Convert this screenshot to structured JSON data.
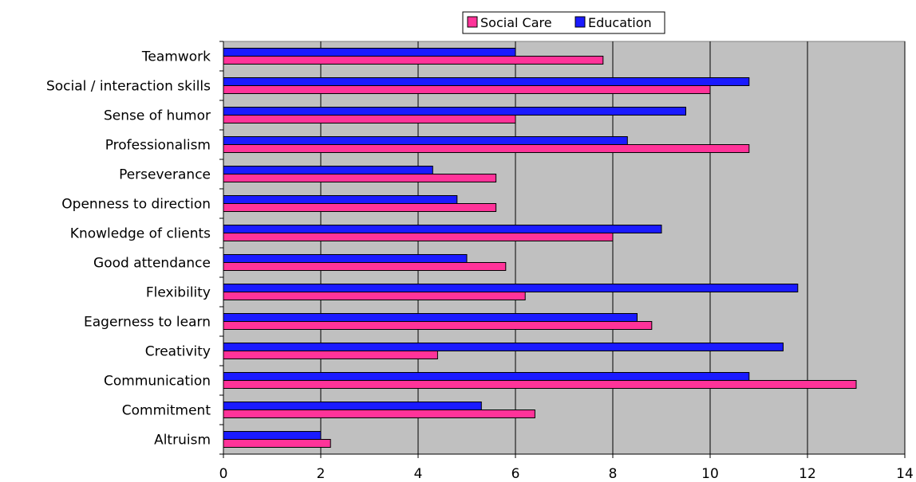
{
  "chart_data": {
    "type": "bar",
    "orientation": "horizontal",
    "categories": [
      "Teamwork",
      "Social / interaction skills",
      "Sense of humor",
      "Professionalism",
      "Perseverance",
      "Openness to direction",
      "Knowledge of clients",
      "Good attendance",
      "Flexibility",
      "Eagerness to learn",
      "Creativity",
      "Communication",
      "Commitment",
      "Altruism"
    ],
    "series": [
      {
        "name": "Social Care",
        "color": "#ff3399",
        "values": [
          7.8,
          10.0,
          6.0,
          10.8,
          5.6,
          5.6,
          8.0,
          5.8,
          6.2,
          8.8,
          4.4,
          13.0,
          6.4,
          2.2
        ]
      },
      {
        "name": "Education",
        "color": "#1a1aff",
        "values": [
          6.0,
          10.8,
          9.5,
          8.3,
          4.3,
          4.8,
          9.0,
          5.0,
          11.8,
          8.5,
          11.5,
          10.8,
          5.3,
          2.0
        ]
      }
    ],
    "xlim": [
      0,
      14
    ],
    "xticks": [
      "0",
      "2",
      "4",
      "6",
      "8",
      "10",
      "12",
      "14"
    ],
    "xlabel": "",
    "ylabel": "",
    "title": "",
    "grid": "vertical",
    "legend": {
      "position": "top",
      "entries": [
        "Social Care",
        "Education"
      ]
    },
    "plot_background": "#c0c0c0"
  }
}
